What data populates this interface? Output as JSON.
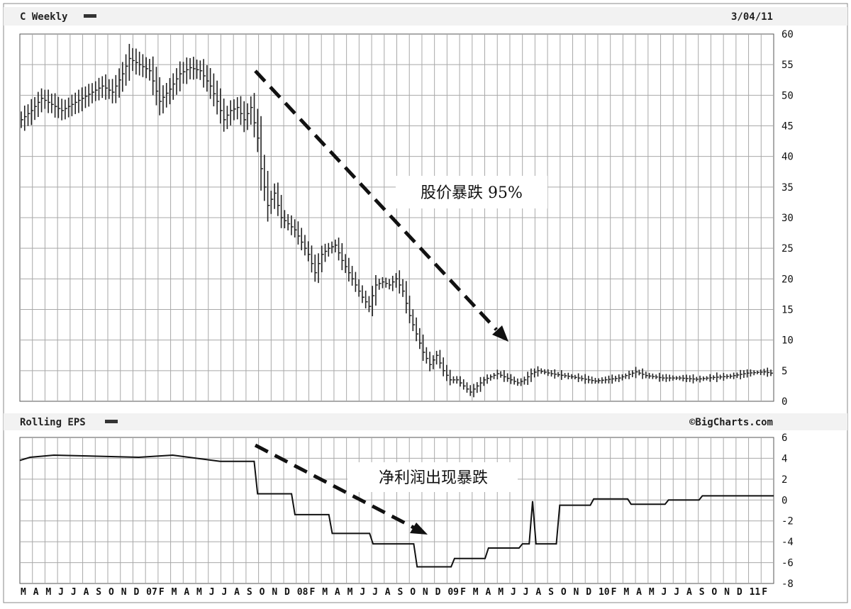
{
  "chart_data": [
    {
      "type": "bar",
      "title": "C Weekly",
      "date": "3/04/11",
      "ylim": [
        0,
        60
      ],
      "y_ticks": [
        "60",
        "55",
        "50",
        "45",
        "40",
        "35",
        "30",
        "25",
        "20",
        "15",
        "10",
        "5",
        "0"
      ],
      "grid": true,
      "annotation": "股价暴跌 95%",
      "price_path": [
        [
          0,
          46
        ],
        [
          3,
          47.5
        ],
        [
          6,
          49.5
        ],
        [
          9,
          48.5
        ],
        [
          12,
          47.5
        ],
        [
          15,
          48.5
        ],
        [
          18,
          49.5
        ],
        [
          21,
          50.5
        ],
        [
          24,
          51.5
        ],
        [
          27,
          50.5
        ],
        [
          30,
          53.5
        ],
        [
          32,
          56
        ],
        [
          35,
          55
        ],
        [
          38,
          54
        ],
        [
          41,
          49
        ],
        [
          44,
          51
        ],
        [
          47,
          53.5
        ],
        [
          50,
          54.5
        ],
        [
          53,
          54
        ],
        [
          56,
          51.5
        ],
        [
          58,
          49
        ],
        [
          60,
          46
        ],
        [
          62,
          47.5
        ],
        [
          64,
          48
        ],
        [
          66,
          46
        ],
        [
          68,
          48
        ],
        [
          70,
          43
        ],
        [
          71,
          38
        ],
        [
          73,
          32
        ],
        [
          75,
          34
        ],
        [
          77,
          30
        ],
        [
          79,
          29
        ],
        [
          81,
          28
        ],
        [
          83,
          26
        ],
        [
          85,
          24
        ],
        [
          87,
          21
        ],
        [
          89,
          24
        ],
        [
          91,
          25
        ],
        [
          93,
          25.5
        ],
        [
          95,
          23
        ],
        [
          97,
          21
        ],
        [
          99,
          19
        ],
        [
          101,
          17
        ],
        [
          103,
          15.5
        ],
        [
          105,
          19
        ],
        [
          107,
          19.5
        ],
        [
          109,
          19
        ],
        [
          111,
          20
        ],
        [
          113,
          18
        ],
        [
          115,
          14
        ],
        [
          117,
          11
        ],
        [
          119,
          8
        ],
        [
          121,
          6
        ],
        [
          123,
          7.5
        ],
        [
          125,
          5
        ],
        [
          127,
          3.5
        ],
        [
          129,
          3.5
        ],
        [
          131,
          2.5
        ],
        [
          133,
          1.5
        ],
        [
          135,
          2.5
        ],
        [
          137,
          3.5
        ],
        [
          139,
          4
        ],
        [
          141,
          4.5
        ],
        [
          143,
          4
        ],
        [
          145,
          3.5
        ],
        [
          147,
          3
        ],
        [
          149,
          3.5
        ],
        [
          151,
          4.5
        ],
        [
          153,
          5
        ],
        [
          157,
          4.5
        ],
        [
          163,
          4
        ],
        [
          170,
          3.3
        ],
        [
          177,
          3.8
        ],
        [
          182,
          4.8
        ],
        [
          185,
          4.2
        ],
        [
          190,
          3.8
        ],
        [
          195,
          3.8
        ],
        [
          200,
          3.6
        ],
        [
          205,
          3.9
        ],
        [
          210,
          4.1
        ],
        [
          215,
          4.6
        ],
        [
          220,
          4.8
        ],
        [
          222,
          4.6
        ]
      ]
    },
    {
      "type": "line",
      "title": "Rolling EPS",
      "ylim": [
        -8,
        6
      ],
      "y_ticks": [
        "6",
        "4",
        "2",
        "0",
        "-2",
        "-4",
        "-6",
        "-8"
      ],
      "grid": true,
      "annotation": "净利润出现暴跌",
      "eps_points": [
        [
          0,
          3.8
        ],
        [
          3,
          4.1
        ],
        [
          10,
          4.3
        ],
        [
          35,
          4.1
        ],
        [
          45,
          4.3
        ],
        [
          59,
          3.7
        ],
        [
          69,
          3.7
        ],
        [
          70,
          0.6
        ],
        [
          80,
          0.6
        ],
        [
          81,
          -1.4
        ],
        [
          91,
          -1.4
        ],
        [
          92,
          -3.2
        ],
        [
          103,
          -3.2
        ],
        [
          104,
          -4.2
        ],
        [
          116,
          -4.2
        ],
        [
          117,
          -6.4
        ],
        [
          127,
          -6.4
        ],
        [
          128,
          -5.6
        ],
        [
          137,
          -5.6
        ],
        [
          138,
          -4.6
        ],
        [
          147,
          -4.6
        ],
        [
          148,
          -4.2
        ],
        [
          150,
          -4.2
        ],
        [
          151,
          -0.1
        ],
        [
          152,
          -4.2
        ],
        [
          158,
          -4.2
        ],
        [
          159,
          -0.5
        ],
        [
          168,
          -0.5
        ],
        [
          169,
          0.1
        ],
        [
          179,
          0.1
        ],
        [
          180,
          -0.4
        ],
        [
          190,
          -0.4
        ],
        [
          191,
          0.0
        ],
        [
          200,
          0.0
        ],
        [
          201,
          0.4
        ],
        [
          222,
          0.4
        ]
      ]
    }
  ],
  "x_labels": [
    "M",
    "A",
    "M",
    "J",
    "J",
    "A",
    "S",
    "O",
    "N",
    "D",
    "07",
    "F",
    "M",
    "A",
    "M",
    "J",
    "J",
    "A",
    "S",
    "O",
    "N",
    "D",
    "08",
    "F",
    "M",
    "A",
    "M",
    "J",
    "J",
    "A",
    "S",
    "O",
    "N",
    "D",
    "09",
    "F",
    "M",
    "A",
    "M",
    "J",
    "J",
    "A",
    "S",
    "O",
    "N",
    "D",
    "10",
    "F",
    "M",
    "A",
    "M",
    "J",
    "J",
    "A",
    "S",
    "O",
    "N",
    "D",
    "11",
    "F"
  ],
  "watermark": "©BigCharts.com"
}
